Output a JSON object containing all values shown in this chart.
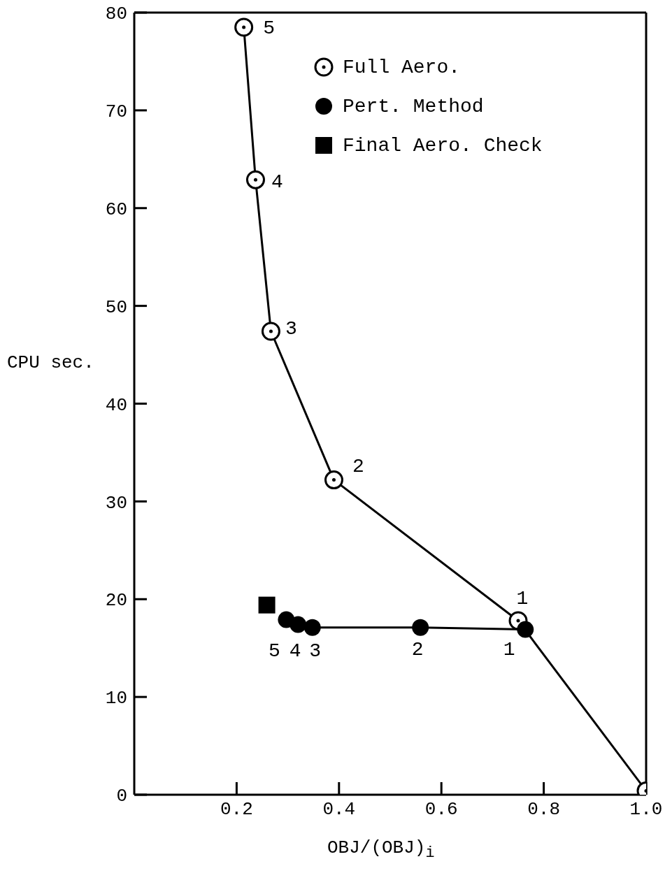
{
  "chart_data": {
    "type": "line",
    "xlabel": "OBJ/(OBJ)$_{i}$",
    "ylabel": "CPU sec.",
    "xlim": [
      0,
      1
    ],
    "ylim": [
      0,
      80
    ],
    "xticks": [
      0.2,
      0.4,
      0.6,
      0.8,
      {
        "value": 1,
        "label": "1.0"
      }
    ],
    "yticks": [
      0,
      10,
      20,
      30,
      40,
      50,
      60,
      70,
      80
    ],
    "legend": "top right",
    "line_style": "solid",
    "series": [
      {
        "name": "Full Aero.",
        "marker": "circle",
        "color": "#000000",
        "x": [
          0.214,
          0.237,
          0.267,
          0.39,
          0.75,
          1.0
        ],
        "values": [
          78.5,
          62.9,
          47.4,
          32.2,
          17.8,
          0.4
        ]
      },
      {
        "name": "Pert. Method",
        "marker": "circle",
        "color": "#000000",
        "x": [
          0.297,
          0.32,
          0.348,
          0.559,
          0.764
        ],
        "values": [
          17.9,
          17.4,
          17.1,
          17.1,
          16.9
        ]
      },
      {
        "name": "Final Aero. Check",
        "type": "scatter",
        "marker": "square",
        "color": "#000000",
        "x": [
          0.259
        ],
        "values": [
          19.4
        ]
      }
    ],
    "annotations": [
      {
        "text": "5",
        "x": 0.214,
        "y": 78.5
      },
      {
        "text": "4",
        "x": 0.237,
        "y": 62.9
      },
      {
        "text": "3",
        "x": 0.267,
        "y": 47.4
      },
      {
        "text": "2",
        "x": 0.39,
        "y": 32.2
      },
      {
        "text": "1",
        "x": 0.75,
        "y": 17.8
      },
      {
        "text": "5",
        "x": 0.297,
        "y": 17.9
      },
      {
        "text": "4",
        "x": 0.32,
        "y": 17.4
      },
      {
        "text": "3",
        "x": 0.348,
        "y": 17.1
      },
      {
        "text": "2",
        "x": 0.559,
        "y": 17.1
      },
      {
        "text": "1",
        "x": 0.764,
        "y": 16.9
      }
    ]
  }
}
